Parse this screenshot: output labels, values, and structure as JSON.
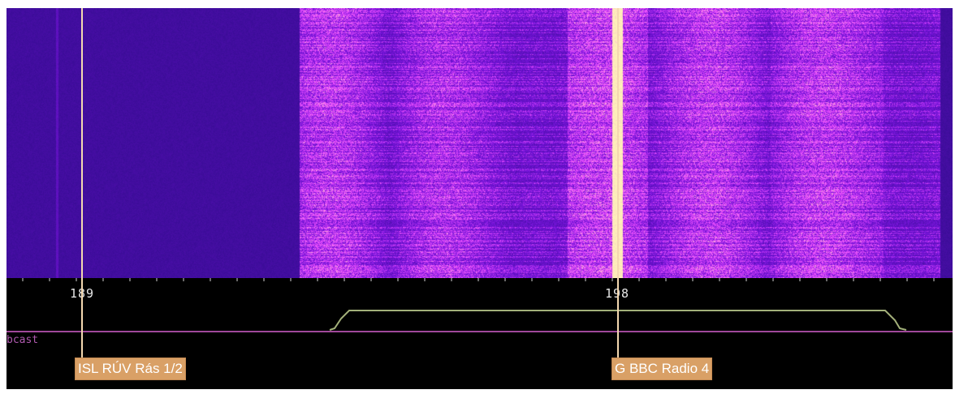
{
  "spectrum": {
    "freq_labels": [
      "189",
      "198"
    ],
    "band_label": "bcast",
    "stations": [
      "ISL RÚV Rás 1/2",
      "G BBC Radio 4"
    ]
  }
}
